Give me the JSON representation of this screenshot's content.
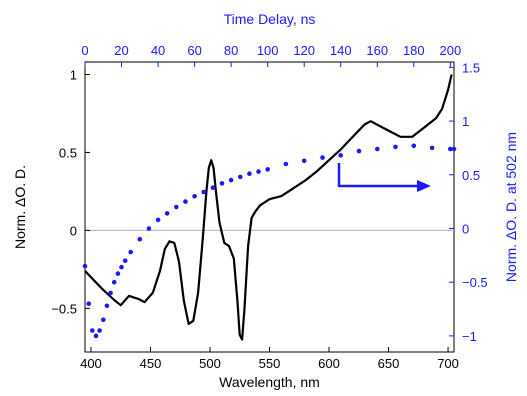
{
  "chart_data": {
    "type": "line",
    "xlabel": "Wavelength, nm",
    "x2label": "Time Delay, ns",
    "ylabel": "Norm. ΔO. D.",
    "y2label": "Norm. ΔO. D. at 502 nm",
    "xlim": [
      395,
      705
    ],
    "x2lim": [
      0,
      202
    ],
    "ylim": [
      -0.78,
      1.08
    ],
    "y2lim": [
      -1.15,
      1.55
    ],
    "xticks": [
      400,
      450,
      500,
      550,
      600,
      650,
      700
    ],
    "x2ticks": [
      0,
      20,
      40,
      60,
      80,
      100,
      120,
      140,
      160,
      180,
      200
    ],
    "yticks": [
      -0.5,
      0,
      0.5,
      1
    ],
    "ytick_labels": [
      "−0.5",
      "0",
      "0.5",
      "1"
    ],
    "y2ticks": [
      -1,
      -0.5,
      0,
      0.5,
      1,
      1.5
    ],
    "y2tick_labels": [
      "−1",
      "−0.5",
      "0",
      "0.5",
      "1",
      "1.5"
    ],
    "zero_line": true,
    "colors": {
      "spectrum": "#000000",
      "kinetics": "#1a1aff",
      "zero": "#b0b0b0"
    },
    "series": [
      {
        "axis": "bottom-left",
        "style": "line",
        "color": "#000000",
        "x": [
          395,
          400,
          410,
          420,
          425,
          432,
          440,
          445,
          452,
          458,
          462,
          466,
          470,
          474,
          478,
          482,
          486,
          490,
          494,
          497,
          499,
          501,
          503,
          505,
          508,
          512,
          516,
          520,
          523,
          525,
          527,
          529,
          532,
          535,
          538,
          542,
          550,
          560,
          570,
          580,
          590,
          600,
          610,
          620,
          630,
          635,
          640,
          650,
          660,
          670,
          680,
          690,
          695,
          700,
          703
        ],
        "y": [
          -0.26,
          -0.3,
          -0.38,
          -0.45,
          -0.48,
          -0.42,
          -0.44,
          -0.46,
          -0.4,
          -0.26,
          -0.12,
          -0.07,
          -0.08,
          -0.2,
          -0.45,
          -0.6,
          -0.58,
          -0.4,
          -0.05,
          0.25,
          0.4,
          0.45,
          0.4,
          0.25,
          0.05,
          -0.08,
          -0.1,
          -0.18,
          -0.45,
          -0.67,
          -0.7,
          -0.5,
          -0.1,
          0.08,
          0.12,
          0.16,
          0.2,
          0.22,
          0.27,
          0.32,
          0.38,
          0.45,
          0.52,
          0.6,
          0.68,
          0.7,
          0.68,
          0.64,
          0.6,
          0.6,
          0.66,
          0.72,
          0.78,
          0.9,
          1.0
        ]
      },
      {
        "axis": "top-right",
        "style": "markers",
        "color": "#1a1aff",
        "x": [
          0,
          2,
          4,
          6,
          8,
          10,
          12,
          14,
          16,
          18,
          20,
          22,
          25,
          30,
          35,
          40,
          45,
          50,
          55,
          60,
          65,
          70,
          75,
          80,
          85,
          90,
          95,
          100,
          110,
          120,
          130,
          140,
          150,
          160,
          170,
          180,
          190,
          200,
          202
        ],
        "y": [
          -0.35,
          -0.7,
          -0.95,
          -1.0,
          -0.95,
          -0.85,
          -0.72,
          -0.6,
          -0.5,
          -0.42,
          -0.36,
          -0.3,
          -0.22,
          -0.1,
          0.0,
          0.08,
          0.14,
          0.2,
          0.25,
          0.3,
          0.34,
          0.38,
          0.42,
          0.45,
          0.48,
          0.51,
          0.53,
          0.55,
          0.6,
          0.63,
          0.66,
          0.68,
          0.72,
          0.74,
          0.76,
          0.77,
          0.75,
          0.74,
          0.74
        ]
      }
    ]
  }
}
